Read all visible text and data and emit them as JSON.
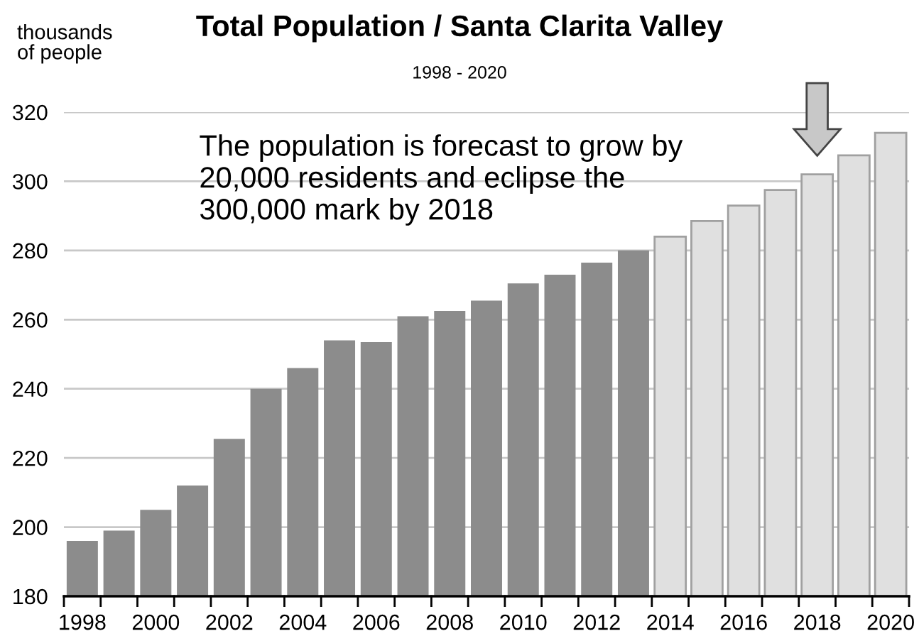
{
  "chart_data": {
    "type": "bar",
    "title": "Total Population / Santa Clarita Valley",
    "subtitle": "1998 - 2020",
    "ylabel": "thousands\nof people",
    "categories": [
      "1998",
      null,
      "2000",
      null,
      "2002",
      null,
      "2004",
      null,
      "2006",
      null,
      "2008",
      null,
      "2010",
      null,
      "2012",
      null,
      "2014",
      null,
      "2016",
      null,
      "2018",
      null,
      "2020"
    ],
    "values": [
      196,
      199,
      205,
      212,
      225.5,
      240,
      246,
      254,
      253.5,
      261,
      262.5,
      265.5,
      270.5,
      273,
      276.5,
      280,
      284,
      288.5,
      293,
      297.5,
      302,
      307.5,
      314
    ],
    "colors": [
      "#8c8c8c",
      "#8c8c8c",
      "#8c8c8c",
      "#8c8c8c",
      "#8c8c8c",
      "#8c8c8c",
      "#8c8c8c",
      "#8c8c8c",
      "#8c8c8c",
      "#8c8c8c",
      "#8c8c8c",
      "#8c8c8c",
      "#8c8c8c",
      "#8c8c8c",
      "#8c8c8c",
      "#8c8c8c",
      "#e0e0e0",
      "#e0e0e0",
      "#e0e0e0",
      "#e0e0e0",
      "#e0e0e0",
      "#e0e0e0",
      "#e0e0e0"
    ],
    "ylim": [
      180,
      320
    ],
    "yticks": [
      180,
      200,
      220,
      240,
      260,
      280,
      300,
      320
    ],
    "grid": "y",
    "annotations": [
      "The population is forecast to grow by\n20,000 residents and eclipse the\n300,000 mark by 2018"
    ]
  }
}
